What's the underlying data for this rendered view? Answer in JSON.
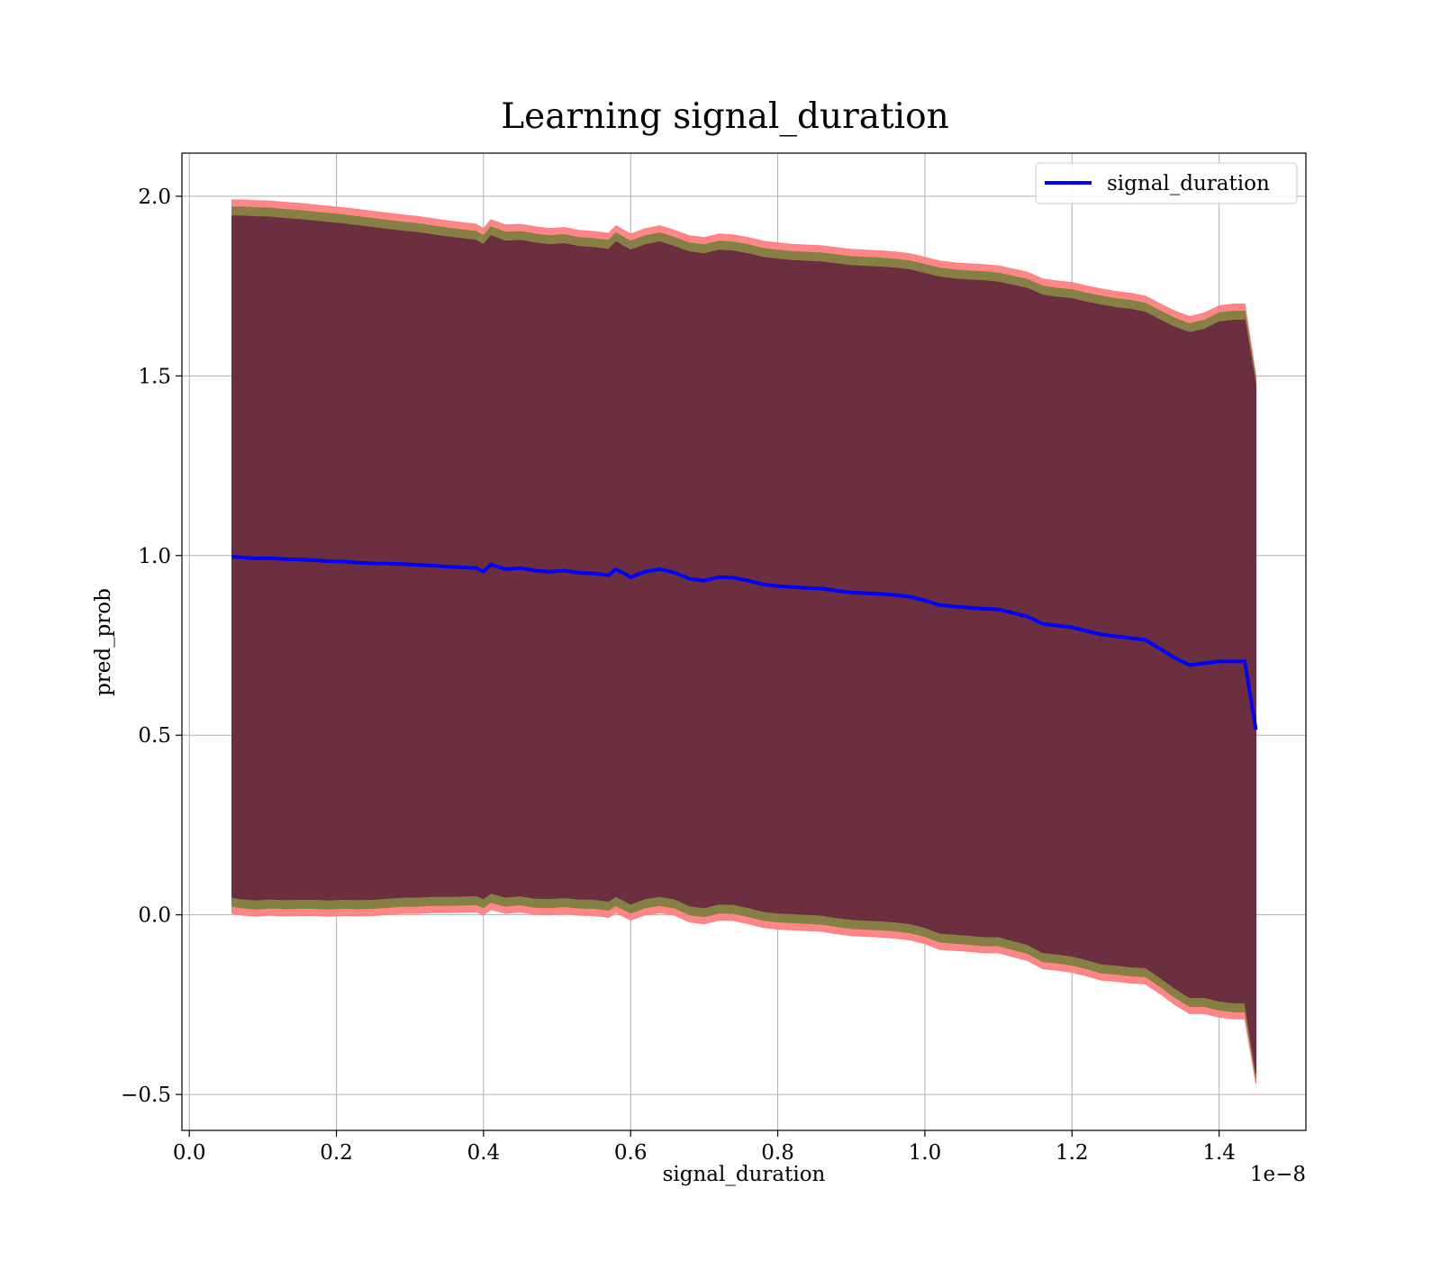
{
  "chart_data": {
    "type": "line",
    "title": "Learning signal_duration",
    "xlabel": "signal_duration",
    "ylabel": "pred_prob",
    "x_offset_text": "1e−8",
    "xlim": [
      -0.01,
      1.518
    ],
    "ylim": [
      -0.6,
      2.12
    ],
    "x_ticks": [
      0.0,
      0.2,
      0.4,
      0.6,
      0.8,
      1.0,
      1.2,
      1.4
    ],
    "x_tick_labels": [
      "0.0",
      "0.2",
      "0.4",
      "0.6",
      "0.8",
      "1.0",
      "1.2",
      "1.4"
    ],
    "y_ticks": [
      -0.5,
      0.0,
      0.5,
      1.0,
      1.5,
      2.0
    ],
    "y_tick_labels": [
      "−0.5",
      "0.0",
      "0.5",
      "1.0",
      "1.5",
      "2.0"
    ],
    "grid": true,
    "legend_position": "top-right",
    "series": [
      {
        "name": "signal_duration",
        "color": "#0000ff",
        "x": [
          0.058,
          0.07,
          0.09,
          0.11,
          0.13,
          0.15,
          0.17,
          0.19,
          0.21,
          0.23,
          0.25,
          0.27,
          0.29,
          0.31,
          0.33,
          0.35,
          0.37,
          0.39,
          0.4,
          0.41,
          0.43,
          0.45,
          0.47,
          0.49,
          0.51,
          0.53,
          0.55,
          0.57,
          0.58,
          0.6,
          0.62,
          0.64,
          0.66,
          0.68,
          0.7,
          0.72,
          0.74,
          0.76,
          0.78,
          0.8,
          0.82,
          0.84,
          0.86,
          0.88,
          0.9,
          0.92,
          0.94,
          0.96,
          0.98,
          1.0,
          1.02,
          1.04,
          1.06,
          1.08,
          1.1,
          1.12,
          1.14,
          1.16,
          1.18,
          1.2,
          1.22,
          1.24,
          1.26,
          1.28,
          1.3,
          1.32,
          1.34,
          1.36,
          1.38,
          1.4,
          1.42,
          1.435,
          1.45
        ],
        "y": [
          0.997,
          0.995,
          0.992,
          0.993,
          0.99,
          0.989,
          0.987,
          0.984,
          0.983,
          0.98,
          0.978,
          0.977,
          0.976,
          0.974,
          0.972,
          0.969,
          0.967,
          0.965,
          0.955,
          0.975,
          0.962,
          0.965,
          0.958,
          0.955,
          0.958,
          0.952,
          0.95,
          0.945,
          0.962,
          0.94,
          0.955,
          0.962,
          0.952,
          0.935,
          0.93,
          0.94,
          0.938,
          0.93,
          0.92,
          0.915,
          0.912,
          0.91,
          0.908,
          0.902,
          0.897,
          0.895,
          0.893,
          0.89,
          0.885,
          0.875,
          0.862,
          0.858,
          0.855,
          0.852,
          0.85,
          0.84,
          0.83,
          0.81,
          0.805,
          0.8,
          0.79,
          0.78,
          0.775,
          0.77,
          0.765,
          0.74,
          0.715,
          0.695,
          0.7,
          0.705,
          0.705,
          0.705,
          0.515
        ]
      }
    ],
    "bands": [
      {
        "color": "#ff7f7f",
        "upper": [
          1.99,
          1.99,
          1.988,
          1.987,
          1.983,
          1.98,
          1.976,
          1.972,
          1.968,
          1.963,
          1.958,
          1.953,
          1.948,
          1.944,
          1.938,
          1.932,
          1.927,
          1.922,
          1.91,
          1.935,
          1.92,
          1.922,
          1.915,
          1.91,
          1.913,
          1.905,
          1.902,
          1.897,
          1.918,
          1.895,
          1.91,
          1.918,
          1.905,
          1.89,
          1.885,
          1.895,
          1.892,
          1.885,
          1.875,
          1.87,
          1.866,
          1.864,
          1.862,
          1.857,
          1.852,
          1.85,
          1.848,
          1.845,
          1.84,
          1.83,
          1.82,
          1.815,
          1.812,
          1.81,
          1.806,
          1.797,
          1.788,
          1.77,
          1.764,
          1.76,
          1.75,
          1.742,
          1.735,
          1.73,
          1.722,
          1.7,
          1.68,
          1.665,
          1.675,
          1.695,
          1.7,
          1.7,
          1.5
        ],
        "lower": [
          0.004,
          0.0,
          -0.004,
          -0.001,
          -0.003,
          -0.002,
          -0.002,
          -0.004,
          -0.002,
          -0.003,
          -0.002,
          0.001,
          0.004,
          0.004,
          0.006,
          0.006,
          0.007,
          0.008,
          0.0,
          0.015,
          0.004,
          0.008,
          0.001,
          0.0,
          0.003,
          -0.001,
          -0.002,
          -0.007,
          0.006,
          -0.015,
          0.0,
          0.006,
          -0.001,
          -0.02,
          -0.025,
          -0.015,
          -0.016,
          -0.025,
          -0.035,
          -0.04,
          -0.042,
          -0.044,
          -0.046,
          -0.053,
          -0.058,
          -0.06,
          -0.062,
          -0.065,
          -0.07,
          -0.08,
          -0.096,
          -0.099,
          -0.102,
          -0.106,
          -0.106,
          -0.117,
          -0.128,
          -0.15,
          -0.154,
          -0.16,
          -0.17,
          -0.182,
          -0.185,
          -0.19,
          -0.192,
          -0.22,
          -0.25,
          -0.275,
          -0.275,
          -0.285,
          -0.29,
          -0.29,
          -0.47
        ]
      },
      {
        "color": "#808040",
        "upper": [
          1.97,
          1.97,
          1.968,
          1.967,
          1.963,
          1.96,
          1.956,
          1.952,
          1.948,
          1.943,
          1.938,
          1.933,
          1.928,
          1.924,
          1.918,
          1.912,
          1.907,
          1.902,
          1.89,
          1.915,
          1.9,
          1.902,
          1.895,
          1.89,
          1.893,
          1.885,
          1.882,
          1.877,
          1.898,
          1.875,
          1.89,
          1.898,
          1.885,
          1.87,
          1.865,
          1.875,
          1.872,
          1.865,
          1.855,
          1.85,
          1.846,
          1.844,
          1.842,
          1.837,
          1.832,
          1.83,
          1.828,
          1.825,
          1.82,
          1.81,
          1.8,
          1.795,
          1.792,
          1.79,
          1.786,
          1.777,
          1.768,
          1.75,
          1.744,
          1.74,
          1.73,
          1.722,
          1.715,
          1.71,
          1.702,
          1.68,
          1.66,
          1.645,
          1.655,
          1.675,
          1.68,
          1.68,
          1.49
        ],
        "lower": [
          0.024,
          0.02,
          0.016,
          0.019,
          0.017,
          0.018,
          0.018,
          0.016,
          0.018,
          0.017,
          0.018,
          0.021,
          0.024,
          0.024,
          0.026,
          0.026,
          0.027,
          0.028,
          0.02,
          0.035,
          0.024,
          0.028,
          0.021,
          0.02,
          0.023,
          0.019,
          0.018,
          0.013,
          0.026,
          0.005,
          0.02,
          0.026,
          0.019,
          0.0,
          -0.005,
          0.005,
          0.004,
          -0.005,
          -0.015,
          -0.02,
          -0.022,
          -0.024,
          -0.026,
          -0.033,
          -0.038,
          -0.04,
          -0.042,
          -0.045,
          -0.05,
          -0.06,
          -0.076,
          -0.079,
          -0.082,
          -0.086,
          -0.086,
          -0.097,
          -0.108,
          -0.13,
          -0.134,
          -0.14,
          -0.15,
          -0.162,
          -0.165,
          -0.17,
          -0.172,
          -0.2,
          -0.23,
          -0.255,
          -0.255,
          -0.265,
          -0.27,
          -0.27,
          -0.455
        ]
      },
      {
        "color": "#6a2a40",
        "upper": [
          1.945,
          1.945,
          1.943,
          1.942,
          1.938,
          1.935,
          1.931,
          1.927,
          1.923,
          1.918,
          1.913,
          1.908,
          1.903,
          1.899,
          1.893,
          1.887,
          1.882,
          1.877,
          1.865,
          1.89,
          1.875,
          1.877,
          1.87,
          1.865,
          1.868,
          1.86,
          1.857,
          1.852,
          1.873,
          1.85,
          1.865,
          1.873,
          1.86,
          1.845,
          1.84,
          1.85,
          1.847,
          1.84,
          1.83,
          1.825,
          1.821,
          1.819,
          1.817,
          1.812,
          1.807,
          1.805,
          1.803,
          1.8,
          1.795,
          1.785,
          1.775,
          1.77,
          1.767,
          1.765,
          1.761,
          1.752,
          1.743,
          1.725,
          1.719,
          1.715,
          1.705,
          1.697,
          1.69,
          1.685,
          1.677,
          1.655,
          1.635,
          1.62,
          1.63,
          1.65,
          1.655,
          1.655,
          1.47
        ],
        "lower": [
          0.049,
          0.045,
          0.041,
          0.044,
          0.042,
          0.043,
          0.043,
          0.041,
          0.043,
          0.042,
          0.043,
          0.046,
          0.049,
          0.049,
          0.051,
          0.051,
          0.052,
          0.053,
          0.045,
          0.06,
          0.049,
          0.053,
          0.046,
          0.045,
          0.048,
          0.044,
          0.043,
          0.038,
          0.051,
          0.03,
          0.045,
          0.051,
          0.044,
          0.025,
          0.02,
          0.03,
          0.029,
          0.02,
          0.01,
          0.005,
          0.003,
          0.001,
          -0.001,
          -0.008,
          -0.013,
          -0.015,
          -0.017,
          -0.02,
          -0.025,
          -0.035,
          -0.051,
          -0.054,
          -0.057,
          -0.061,
          -0.061,
          -0.072,
          -0.083,
          -0.105,
          -0.109,
          -0.115,
          -0.125,
          -0.137,
          -0.14,
          -0.145,
          -0.147,
          -0.175,
          -0.205,
          -0.23,
          -0.23,
          -0.24,
          -0.245,
          -0.245,
          -0.44
        ]
      }
    ]
  }
}
